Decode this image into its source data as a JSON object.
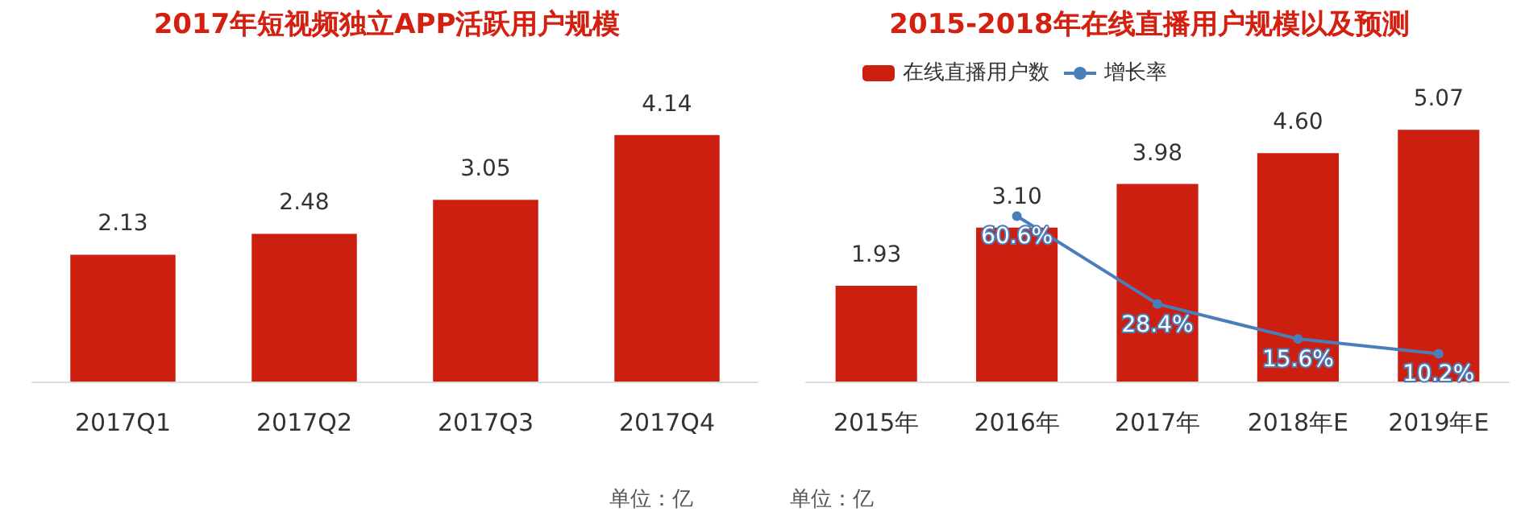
{
  "chart_data": [
    {
      "type": "bar",
      "title": "2017年短视频独立APP活跃用户规模",
      "categories": [
        "2017Q1",
        "2017Q2",
        "2017Q3",
        "2017Q4"
      ],
      "series": [
        {
          "color": "#cc1f0f",
          "values": [
            2.13,
            2.48,
            3.05,
            4.14
          ],
          "value_labels": [
            "2.13",
            "2.48",
            "3.05",
            "4.14"
          ]
        }
      ],
      "tick_labels": "x",
      "legend": false,
      "annotations": [
        "单位：亿"
      ]
    },
    {
      "type": "bar",
      "title": "2015-2018年在线直播用户规模以及预测",
      "categories": [
        "2015年",
        "2016年",
        "2017年",
        "2018年E",
        "2019年E"
      ],
      "series": [
        {
          "name": "在线直播用户数",
          "color": "#cc1f0f",
          "values": [
            1.93,
            3.1,
            3.98,
            4.6,
            5.07
          ],
          "value_labels": [
            "1.93",
            "3.10",
            "3.98",
            "4.60",
            "5.07"
          ]
        },
        {
          "name": "增长率",
          "type": "line",
          "axis": "y2",
          "color": "#4a7ebb",
          "values": [
            null,
            60.6,
            28.4,
            15.6,
            10.2
          ],
          "value_labels": [
            null,
            "60.6%",
            "28.4%",
            "15.6%",
            "10.2%"
          ]
        }
      ],
      "tick_labels": "x",
      "legend": "top left",
      "marker": "circle",
      "annotations": [
        "单位：亿"
      ]
    }
  ]
}
